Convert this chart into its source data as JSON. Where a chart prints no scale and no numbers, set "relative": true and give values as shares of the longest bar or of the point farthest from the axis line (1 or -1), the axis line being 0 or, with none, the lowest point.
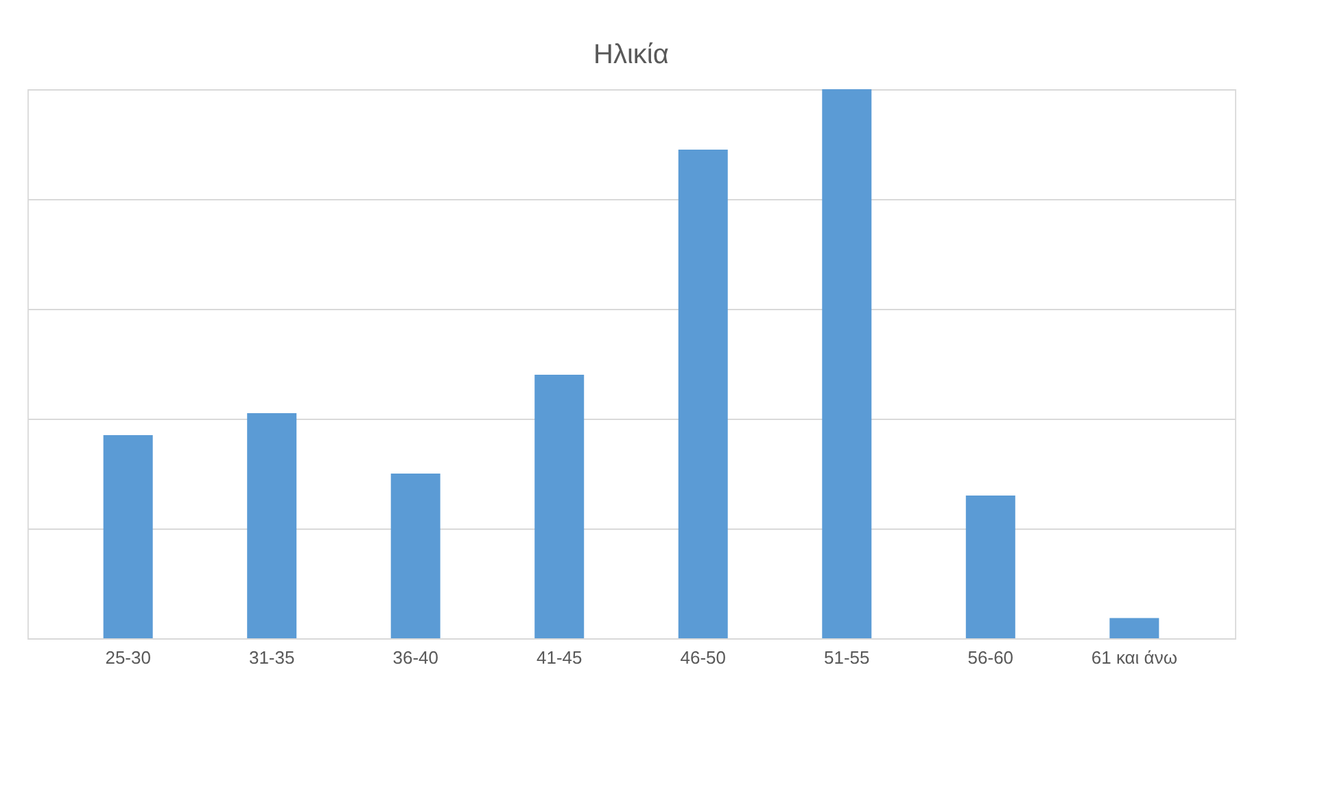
{
  "chart_data": {
    "type": "bar",
    "title": "Ηλικία",
    "categories": [
      "25-30",
      "31-35",
      "36-40",
      "41-45",
      "46-50",
      "51-55",
      "56-60",
      "61 και άνω"
    ],
    "values": [
      0.37,
      0.41,
      0.3,
      0.48,
      0.89,
      1,
      0.26,
      0.037
    ],
    "color": "#5b9bd5",
    "relative": true,
    "grid": "y"
  }
}
